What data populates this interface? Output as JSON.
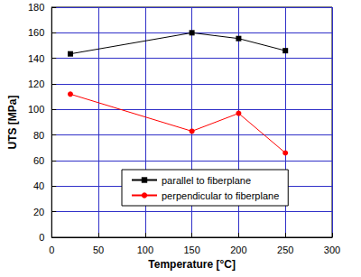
{
  "chart_data": {
    "type": "line",
    "x_label": "Temperature [°C]",
    "y_label": "UTS [MPa]",
    "x": [
      20,
      150,
      200,
      250
    ],
    "series": [
      {
        "name": "parallel to fiberplane",
        "color": "#000000",
        "marker": "square",
        "values": [
          143.5,
          160,
          155.5,
          146
        ]
      },
      {
        "name": "perpendicular to fiberplane",
        "color": "#ff0000",
        "marker": "circle",
        "values": [
          112,
          83,
          97,
          66
        ]
      }
    ],
    "xlim": [
      0,
      300
    ],
    "xticks": [
      0,
      50,
      100,
      150,
      200,
      250,
      300
    ],
    "ylim": [
      0,
      180
    ],
    "yticks": [
      0,
      20,
      40,
      60,
      80,
      100,
      120,
      140,
      160,
      180
    ],
    "grid": true,
    "legend": "lower center"
  }
}
